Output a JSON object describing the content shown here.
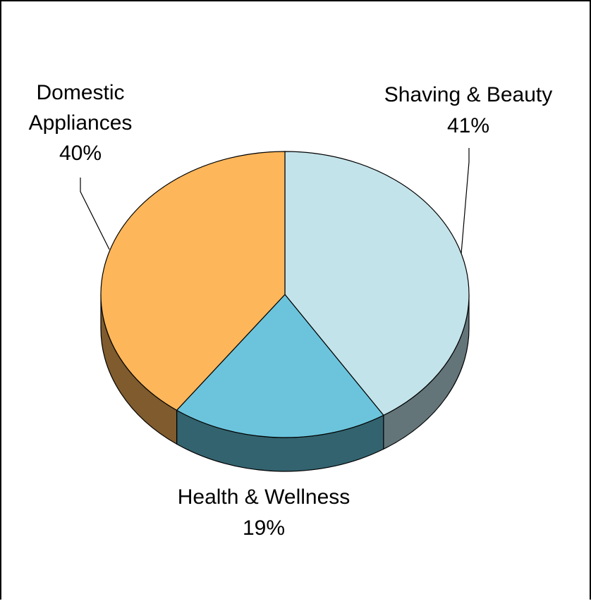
{
  "chart_data": {
    "type": "pie",
    "title": "",
    "style": "3d",
    "labels_position": "outside",
    "slices": [
      {
        "name": "Shaving & Beauty",
        "value": 41,
        "label": "41%",
        "color": "#c3e3ea",
        "side_color": "#637579"
      },
      {
        "name": "Health & Wellness",
        "value": 19,
        "label": "19%",
        "color": "#6bc4dc",
        "side_color": "#33636f"
      },
      {
        "name": "Domestic Appliances",
        "value": 40,
        "label": "40%",
        "color": "#fdb65a",
        "side_color": "#7f5b2e"
      }
    ]
  }
}
